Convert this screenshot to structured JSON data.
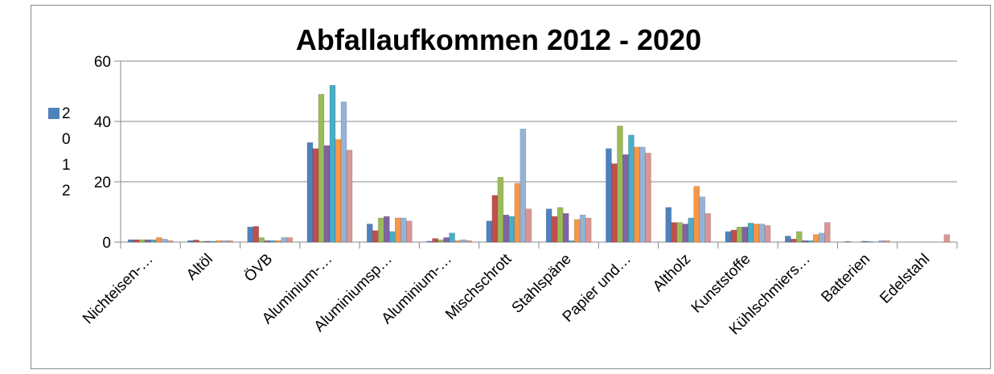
{
  "chart_data": {
    "type": "bar",
    "title": "Abfallaufkommen 2012 - 2020",
    "categories": [
      "Nichteisen-…",
      "Altöl",
      "ÖVB",
      "Aluminium-…",
      "Aluminiumsp…",
      "Aluminium-…",
      "Mischschrott",
      "Stahlspäne",
      "Papier und…",
      "Altholz",
      "Kunststoffe",
      "Kühlschmiers…",
      "Batterien",
      "Edelstahl"
    ],
    "series": [
      {
        "name": "2012",
        "color": "#4f81bd",
        "values": [
          0.8,
          0.5,
          5,
          33,
          6,
          0.3,
          7,
          11,
          31,
          11.5,
          3.5,
          2,
          0.2,
          0
        ]
      },
      {
        "color": "#c0504d",
        "values": [
          0.8,
          0.7,
          5.2,
          31,
          3.8,
          1.2,
          15.5,
          8.5,
          26,
          6.5,
          4,
          1,
          0,
          0
        ]
      },
      {
        "color": "#9bbb59",
        "values": [
          0.8,
          0.3,
          1.5,
          49,
          8,
          0.8,
          21.5,
          11.5,
          38.5,
          6.5,
          5,
          3.5,
          0,
          0
        ]
      },
      {
        "color": "#8064a2",
        "values": [
          0.8,
          0.3,
          0.5,
          32,
          8.5,
          1.5,
          9,
          9.5,
          29,
          6,
          5,
          0.5,
          0.3,
          0
        ]
      },
      {
        "color": "#4bacc6",
        "values": [
          0.8,
          0.3,
          0.5,
          52,
          3.5,
          3,
          8.5,
          0.5,
          35.5,
          8,
          6.3,
          0.5,
          0.2,
          0
        ]
      },
      {
        "color": "#f79646",
        "values": [
          1.5,
          0.5,
          0.5,
          34,
          8,
          0.5,
          19.5,
          7.5,
          31.5,
          18.5,
          6,
          2.5,
          0,
          0
        ]
      },
      {
        "color": "#95b3d7",
        "values": [
          1,
          0.5,
          1.5,
          46.5,
          8,
          0.8,
          37.5,
          9,
          31.5,
          15,
          6,
          3,
          0.5,
          0
        ]
      },
      {
        "color": "#d99694",
        "values": [
          0.5,
          0.5,
          1.5,
          30.5,
          7,
          0.5,
          11,
          8,
          29.5,
          9.5,
          5.5,
          6.5,
          0.5,
          2.5
        ]
      }
    ],
    "ylim": [
      0,
      60
    ],
    "yticks": [
      0,
      20,
      40,
      60
    ],
    "grid": true
  }
}
